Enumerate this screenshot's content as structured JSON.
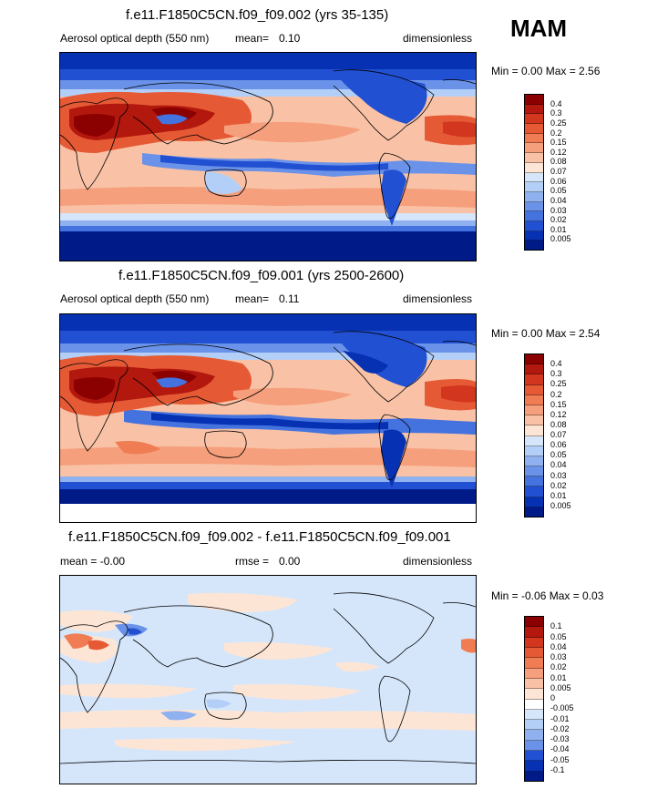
{
  "season": "MAM",
  "panels": [
    {
      "title": "f.e11.F1850C5CN.f09_f09.002 (yrs 35-135)",
      "left_text": "Aerosol optical depth (550 nm)",
      "mid_label": "mean=",
      "mid_value": "0.10",
      "right_text": "dimensionless",
      "minmax": "Min =  0.00 Max =   2.56",
      "levels": [
        "0.4",
        "0.3",
        "0.25",
        "0.2",
        "0.15",
        "0.12",
        "0.08",
        "0.07",
        "0.06",
        "0.05",
        "0.04",
        "0.03",
        "0.02",
        "0.01",
        "0.005"
      ],
      "colors": [
        "#8b0000",
        "#b2180e",
        "#d2361e",
        "#e55a35",
        "#f07c53",
        "#f59f7c",
        "#f9c2a6",
        "#fde5d6",
        "#d5e6fa",
        "#b4cff7",
        "#8fb1ef",
        "#6a92e8",
        "#4472de",
        "#2150d2",
        "#0731b3",
        "#001a88"
      ]
    },
    {
      "title": "f.e11.F1850C5CN.f09_f09.001 (yrs 2500-2600)",
      "left_text": "Aerosol optical depth (550 nm)",
      "mid_label": "mean=",
      "mid_value": "0.11",
      "right_text": "dimensionless",
      "minmax": "Min =  0.00 Max =   2.54",
      "levels": [
        "0.4",
        "0.3",
        "0.25",
        "0.2",
        "0.15",
        "0.12",
        "0.08",
        "0.07",
        "0.06",
        "0.05",
        "0.04",
        "0.03",
        "0.02",
        "0.01",
        "0.005"
      ],
      "colors": [
        "#8b0000",
        "#b2180e",
        "#d2361e",
        "#e55a35",
        "#f07c53",
        "#f59f7c",
        "#f9c2a6",
        "#fde5d6",
        "#d5e6fa",
        "#b4cff7",
        "#8fb1ef",
        "#6a92e8",
        "#4472de",
        "#2150d2",
        "#0731b3",
        "#001a88"
      ]
    },
    {
      "title": "f.e11.F1850C5CN.f09_f09.002 - f.e11.F1850C5CN.f09_f09.001",
      "left_text": "mean =  -0.00",
      "mid_label": "rmse =",
      "mid_value": "0.00",
      "right_text": "dimensionless",
      "minmax": "Min =  -0.06 Max =   0.03",
      "levels": [
        "0.1",
        "0.05",
        "0.04",
        "0.03",
        "0.02",
        "0.01",
        "0.005",
        "0",
        "-0.005",
        "-0.01",
        "-0.02",
        "-0.03",
        "-0.04",
        "-0.05",
        "-0.1"
      ],
      "colors": [
        "#8b0000",
        "#b2180e",
        "#d2361e",
        "#e55a35",
        "#f07c53",
        "#f59f7c",
        "#f9c2a6",
        "#fde5d6",
        "#ffffff",
        "#d5e6fa",
        "#b4cff7",
        "#8fb1ef",
        "#6a92e8",
        "#2150d2",
        "#0731b3",
        "#001a88"
      ]
    }
  ]
}
